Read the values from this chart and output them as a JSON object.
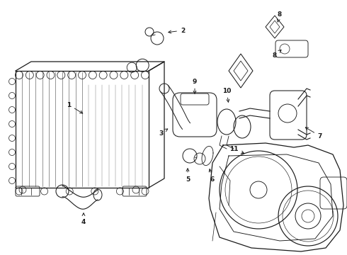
{
  "bg_color": "#ffffff",
  "lc": "#1a1a1a",
  "lw": 0.9
}
